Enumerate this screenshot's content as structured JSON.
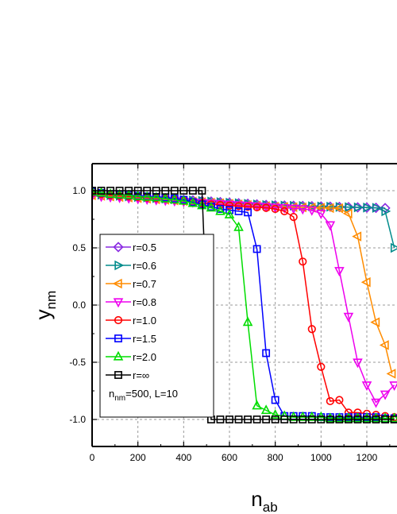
{
  "chart_data": {
    "type": "line",
    "xlabel": {
      "main": "n",
      "sub": "ab"
    },
    "ylabel": {
      "main": "y",
      "sub": "nm"
    },
    "xlim": [
      0,
      1300
    ],
    "ylim": [
      -1.22,
      1.22
    ],
    "xticks": [
      "0",
      "200",
      "400",
      "600",
      "800",
      "1000",
      "1200"
    ],
    "yticks": [
      "-1.0",
      "-0.5",
      "0.0",
      "0.5",
      "1.0"
    ],
    "xtick_values": [
      0,
      200,
      400,
      600,
      800,
      1000,
      1200
    ],
    "ytick_values": [
      -1.0,
      -0.5,
      0.0,
      0.5,
      1.0
    ],
    "grid": true,
    "legend_position": "left",
    "legend_note": {
      "prefix": "n",
      "sub": "nm",
      "rest": "=500, L=10"
    },
    "series": [
      {
        "name": "r=0.5",
        "color": "#8a2be2",
        "marker": "diamond",
        "points": [
          [
            0,
            0.98
          ],
          [
            40,
            0.97
          ],
          [
            80,
            0.96
          ],
          [
            120,
            0.955
          ],
          [
            160,
            0.95
          ],
          [
            200,
            0.945
          ],
          [
            240,
            0.94
          ],
          [
            280,
            0.935
          ],
          [
            320,
            0.93
          ],
          [
            360,
            0.925
          ],
          [
            400,
            0.92
          ],
          [
            440,
            0.915
          ],
          [
            480,
            0.91
          ],
          [
            520,
            0.905
          ],
          [
            560,
            0.9
          ],
          [
            600,
            0.895
          ],
          [
            640,
            0.89
          ],
          [
            680,
            0.885
          ],
          [
            720,
            0.88
          ],
          [
            760,
            0.875
          ],
          [
            800,
            0.872
          ],
          [
            840,
            0.87
          ],
          [
            880,
            0.868
          ],
          [
            920,
            0.866
          ],
          [
            960,
            0.864
          ],
          [
            1000,
            0.862
          ],
          [
            1040,
            0.86
          ],
          [
            1080,
            0.858
          ],
          [
            1120,
            0.856
          ],
          [
            1160,
            0.854
          ],
          [
            1200,
            0.852
          ],
          [
            1240,
            0.85
          ],
          [
            1280,
            0.848
          ]
        ]
      },
      {
        "name": "r=0.6",
        "color": "#008b8b",
        "marker": "triangle-right",
        "points": [
          [
            0,
            0.97
          ],
          [
            40,
            0.965
          ],
          [
            80,
            0.96
          ],
          [
            120,
            0.955
          ],
          [
            160,
            0.95
          ],
          [
            200,
            0.945
          ],
          [
            240,
            0.94
          ],
          [
            280,
            0.935
          ],
          [
            320,
            0.93
          ],
          [
            360,
            0.925
          ],
          [
            400,
            0.92
          ],
          [
            440,
            0.915
          ],
          [
            480,
            0.91
          ],
          [
            520,
            0.905
          ],
          [
            560,
            0.9
          ],
          [
            600,
            0.895
          ],
          [
            640,
            0.89
          ],
          [
            680,
            0.885
          ],
          [
            720,
            0.88
          ],
          [
            760,
            0.875
          ],
          [
            800,
            0.872
          ],
          [
            840,
            0.87
          ],
          [
            880,
            0.868
          ],
          [
            920,
            0.866
          ],
          [
            960,
            0.864
          ],
          [
            1000,
            0.862
          ],
          [
            1040,
            0.86
          ],
          [
            1080,
            0.858
          ],
          [
            1120,
            0.856
          ],
          [
            1160,
            0.854
          ],
          [
            1200,
            0.852
          ],
          [
            1240,
            0.85
          ],
          [
            1280,
            0.82
          ],
          [
            1320,
            0.5
          ]
        ]
      },
      {
        "name": "r=0.7",
        "color": "#ff8c00",
        "marker": "triangle-left",
        "points": [
          [
            0,
            0.96
          ],
          [
            40,
            0.955
          ],
          [
            80,
            0.95
          ],
          [
            120,
            0.945
          ],
          [
            160,
            0.94
          ],
          [
            200,
            0.935
          ],
          [
            240,
            0.93
          ],
          [
            280,
            0.925
          ],
          [
            320,
            0.92
          ],
          [
            360,
            0.915
          ],
          [
            400,
            0.91
          ],
          [
            440,
            0.905
          ],
          [
            480,
            0.9
          ],
          [
            520,
            0.895
          ],
          [
            560,
            0.89
          ],
          [
            600,
            0.885
          ],
          [
            640,
            0.88
          ],
          [
            680,
            0.875
          ],
          [
            720,
            0.87
          ],
          [
            760,
            0.865
          ],
          [
            800,
            0.86
          ],
          [
            840,
            0.858
          ],
          [
            880,
            0.856
          ],
          [
            920,
            0.854
          ],
          [
            960,
            0.852
          ],
          [
            1000,
            0.85
          ],
          [
            1040,
            0.848
          ],
          [
            1080,
            0.846
          ],
          [
            1120,
            0.8
          ],
          [
            1160,
            0.6
          ],
          [
            1200,
            0.2
          ],
          [
            1240,
            -0.15
          ],
          [
            1280,
            -0.35
          ],
          [
            1310,
            -0.6
          ]
        ]
      },
      {
        "name": "r=0.8",
        "color": "#ee00ee",
        "marker": "triangle-down",
        "points": [
          [
            0,
            0.955
          ],
          [
            40,
            0.95
          ],
          [
            80,
            0.945
          ],
          [
            120,
            0.94
          ],
          [
            160,
            0.935
          ],
          [
            200,
            0.93
          ],
          [
            240,
            0.925
          ],
          [
            280,
            0.92
          ],
          [
            320,
            0.915
          ],
          [
            360,
            0.91
          ],
          [
            400,
            0.905
          ],
          [
            440,
            0.9
          ],
          [
            480,
            0.895
          ],
          [
            520,
            0.89
          ],
          [
            560,
            0.885
          ],
          [
            600,
            0.88
          ],
          [
            640,
            0.875
          ],
          [
            680,
            0.87
          ],
          [
            720,
            0.865
          ],
          [
            760,
            0.86
          ],
          [
            800,
            0.855
          ],
          [
            840,
            0.85
          ],
          [
            880,
            0.845
          ],
          [
            920,
            0.84
          ],
          [
            960,
            0.83
          ],
          [
            1000,
            0.8
          ],
          [
            1040,
            0.7
          ],
          [
            1080,
            0.3
          ],
          [
            1120,
            -0.1
          ],
          [
            1160,
            -0.5
          ],
          [
            1200,
            -0.7
          ],
          [
            1240,
            -0.85
          ],
          [
            1280,
            -0.78
          ],
          [
            1320,
            -0.7
          ]
        ]
      },
      {
        "name": "r=1.0",
        "color": "#ff0000",
        "marker": "circle",
        "points": [
          [
            0,
            0.98
          ],
          [
            40,
            0.97
          ],
          [
            80,
            0.96
          ],
          [
            120,
            0.955
          ],
          [
            160,
            0.95
          ],
          [
            200,
            0.945
          ],
          [
            240,
            0.94
          ],
          [
            280,
            0.935
          ],
          [
            320,
            0.93
          ],
          [
            360,
            0.92
          ],
          [
            400,
            0.91
          ],
          [
            440,
            0.9
          ],
          [
            480,
            0.89
          ],
          [
            520,
            0.88
          ],
          [
            560,
            0.875
          ],
          [
            600,
            0.87
          ],
          [
            640,
            0.865
          ],
          [
            680,
            0.86
          ],
          [
            720,
            0.855
          ],
          [
            760,
            0.85
          ],
          [
            800,
            0.84
          ],
          [
            840,
            0.82
          ],
          [
            880,
            0.77
          ],
          [
            920,
            0.38
          ],
          [
            960,
            -0.21
          ],
          [
            1000,
            -0.54
          ],
          [
            1040,
            -0.84
          ],
          [
            1080,
            -0.83
          ],
          [
            1120,
            -0.94
          ],
          [
            1160,
            -0.94
          ],
          [
            1200,
            -0.95
          ],
          [
            1240,
            -0.96
          ],
          [
            1280,
            -0.97
          ],
          [
            1320,
            -0.98
          ]
        ]
      },
      {
        "name": "r=1.5",
        "color": "#0000ff",
        "marker": "square",
        "points": [
          [
            0,
            0.99
          ],
          [
            40,
            0.98
          ],
          [
            80,
            0.97
          ],
          [
            120,
            0.965
          ],
          [
            160,
            0.96
          ],
          [
            200,
            0.955
          ],
          [
            240,
            0.95
          ],
          [
            280,
            0.945
          ],
          [
            320,
            0.94
          ],
          [
            360,
            0.93
          ],
          [
            400,
            0.92
          ],
          [
            440,
            0.9
          ],
          [
            480,
            0.88
          ],
          [
            520,
            0.86
          ],
          [
            560,
            0.84
          ],
          [
            600,
            0.83
          ],
          [
            640,
            0.82
          ],
          [
            680,
            0.81
          ],
          [
            720,
            0.49
          ],
          [
            760,
            -0.42
          ],
          [
            800,
            -0.83
          ],
          [
            840,
            -0.97
          ],
          [
            880,
            -0.97
          ],
          [
            920,
            -0.97
          ],
          [
            960,
            -0.97
          ],
          [
            1000,
            -0.98
          ],
          [
            1040,
            -0.98
          ],
          [
            1080,
            -0.98
          ],
          [
            1120,
            -0.98
          ],
          [
            1160,
            -0.98
          ],
          [
            1200,
            -0.98
          ],
          [
            1240,
            -0.98
          ],
          [
            1280,
            -0.99
          ],
          [
            1320,
            -0.99
          ]
        ]
      },
      {
        "name": "r=2.0",
        "color": "#00dd00",
        "marker": "triangle-up",
        "points": [
          [
            0,
            0.99
          ],
          [
            40,
            0.98
          ],
          [
            80,
            0.97
          ],
          [
            120,
            0.965
          ],
          [
            160,
            0.96
          ],
          [
            200,
            0.95
          ],
          [
            240,
            0.945
          ],
          [
            280,
            0.94
          ],
          [
            320,
            0.93
          ],
          [
            360,
            0.92
          ],
          [
            400,
            0.91
          ],
          [
            440,
            0.89
          ],
          [
            480,
            0.87
          ],
          [
            520,
            0.85
          ],
          [
            560,
            0.82
          ],
          [
            600,
            0.79
          ],
          [
            640,
            0.68
          ],
          [
            680,
            -0.15
          ],
          [
            720,
            -0.88
          ],
          [
            760,
            -0.92
          ],
          [
            800,
            -0.96
          ],
          [
            840,
            -0.97
          ],
          [
            880,
            -0.98
          ],
          [
            920,
            -0.98
          ],
          [
            960,
            -0.98
          ],
          [
            1000,
            -0.98
          ],
          [
            1040,
            -0.99
          ],
          [
            1080,
            -0.99
          ],
          [
            1120,
            -0.99
          ],
          [
            1160,
            -0.99
          ],
          [
            1200,
            -0.99
          ],
          [
            1240,
            -0.99
          ],
          [
            1280,
            -0.99
          ],
          [
            1320,
            -0.99
          ]
        ]
      },
      {
        "name": "r=∞",
        "color": "#000000",
        "marker": "square",
        "points": [
          [
            0,
            1.0
          ],
          [
            40,
            1.0
          ],
          [
            80,
            1.0
          ],
          [
            120,
            1.0
          ],
          [
            160,
            1.0
          ],
          [
            200,
            1.0
          ],
          [
            240,
            1.0
          ],
          [
            280,
            1.0
          ],
          [
            320,
            1.0
          ],
          [
            360,
            1.0
          ],
          [
            400,
            1.0
          ],
          [
            440,
            1.0
          ],
          [
            480,
            1.0
          ],
          [
            520,
            -1.0
          ],
          [
            560,
            -1.0
          ],
          [
            600,
            -1.0
          ],
          [
            640,
            -1.0
          ],
          [
            680,
            -1.0
          ],
          [
            720,
            -1.0
          ],
          [
            760,
            -1.0
          ],
          [
            800,
            -1.0
          ],
          [
            840,
            -1.0
          ],
          [
            880,
            -1.0
          ],
          [
            920,
            -1.0
          ],
          [
            960,
            -1.0
          ],
          [
            1000,
            -1.0
          ],
          [
            1040,
            -1.0
          ],
          [
            1080,
            -1.0
          ],
          [
            1120,
            -1.0
          ],
          [
            1160,
            -1.0
          ],
          [
            1200,
            -1.0
          ],
          [
            1240,
            -1.0
          ],
          [
            1280,
            -1.0
          ],
          [
            1320,
            -1.0
          ]
        ]
      }
    ]
  }
}
